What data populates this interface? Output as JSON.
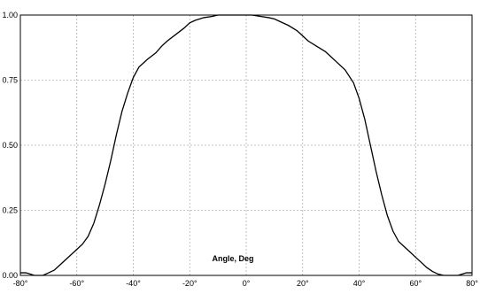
{
  "chart_data": {
    "type": "line",
    "xlabel": "Angle, Deg",
    "ylabel": "",
    "xlim": [
      -80,
      80
    ],
    "ylim": [
      0,
      1
    ],
    "grid": true,
    "x_ticks": [
      "-80°",
      "-60°",
      "-40°",
      "-20°",
      "0°",
      "20°",
      "40°",
      "60°",
      "80°"
    ],
    "y_ticks": [
      "0.00",
      "0.25",
      "0.50",
      "0.75",
      "1.00"
    ],
    "x": [
      -80,
      -78,
      -75,
      -72,
      -70,
      -68,
      -66,
      -64,
      -62,
      -60,
      -58,
      -56,
      -54,
      -52,
      -50,
      -48,
      -46,
      -44,
      -42,
      -40,
      -38,
      -35,
      -32,
      -30,
      -28,
      -25,
      -22,
      -20,
      -18,
      -15,
      -12,
      -10,
      -8,
      -5,
      -2,
      0,
      2,
      5,
      8,
      10,
      12,
      15,
      18,
      20,
      22,
      25,
      28,
      30,
      32,
      35,
      38,
      40,
      42,
      44,
      46,
      48,
      50,
      52,
      54,
      56,
      58,
      60,
      62,
      64,
      66,
      68,
      70,
      72,
      75,
      78,
      80
    ],
    "y": [
      0.01,
      0.01,
      0.0,
      0.0,
      0.01,
      0.02,
      0.04,
      0.06,
      0.08,
      0.1,
      0.12,
      0.15,
      0.2,
      0.27,
      0.35,
      0.44,
      0.54,
      0.63,
      0.7,
      0.76,
      0.8,
      0.83,
      0.855,
      0.88,
      0.9,
      0.925,
      0.95,
      0.97,
      0.98,
      0.99,
      0.995,
      1.0,
      1.0,
      1.0,
      1.0,
      1.0,
      1.0,
      0.995,
      0.99,
      0.985,
      0.975,
      0.96,
      0.94,
      0.92,
      0.9,
      0.88,
      0.86,
      0.84,
      0.82,
      0.79,
      0.74,
      0.68,
      0.6,
      0.5,
      0.4,
      0.31,
      0.23,
      0.17,
      0.13,
      0.11,
      0.09,
      0.07,
      0.05,
      0.03,
      0.015,
      0.005,
      0.0,
      0.0,
      0.0,
      0.01,
      0.01
    ]
  }
}
